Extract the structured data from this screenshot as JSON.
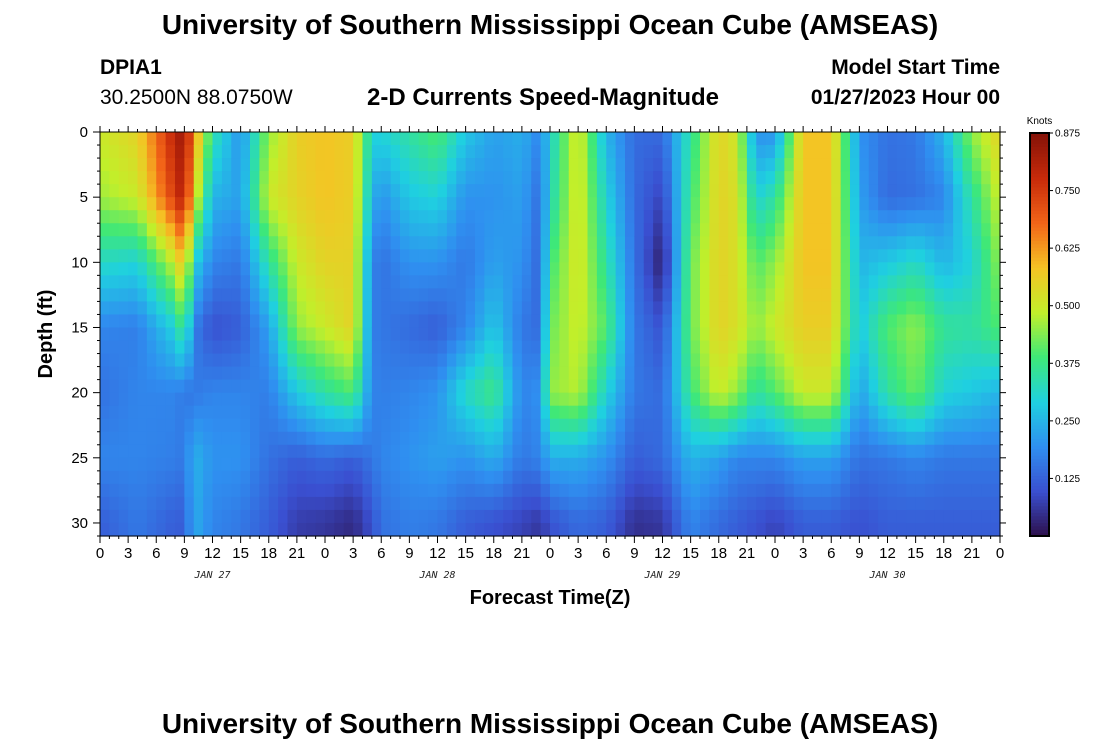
{
  "page": {
    "title": "University of Southern Mississippi Ocean Cube (AMSEAS)",
    "footer_title": "University of Southern Mississippi Ocean Cube (AMSEAS)",
    "station_id": "DPIA1",
    "coordinates": "30.2500N  88.0750W",
    "model_start_label": "Model Start Time",
    "model_start_value": "01/27/2023 Hour 00"
  },
  "colors": {
    "scale": [
      "#2c0f4a",
      "#3a4fd0",
      "#2f8ff0",
      "#1fd0e0",
      "#3ee878",
      "#c2ef2a",
      "#f5c324",
      "#f26418",
      "#c72a0a",
      "#851208"
    ]
  },
  "chart_data": {
    "type": "heatmap",
    "title": "2-D Currents Speed-Magnitude",
    "xlabel": "Forecast Time(Z)",
    "ylabel": "Depth (ft)",
    "colorbar_label": "Knots",
    "colorbar_range": [
      0,
      0.875
    ],
    "colorbar_ticks": [
      "0.125",
      "0.250",
      "0.375",
      "0.500",
      "0.625",
      "0.750",
      "0.875"
    ],
    "x_range_hours": [
      0,
      96
    ],
    "x_tick_labels": [
      "0",
      "3",
      "6",
      "9",
      "12",
      "15",
      "18",
      "21",
      "0",
      "3",
      "6",
      "9",
      "12",
      "15",
      "18",
      "21",
      "0",
      "3",
      "6",
      "9",
      "12",
      "15",
      "18",
      "21",
      "0",
      "3",
      "6",
      "9",
      "12",
      "15",
      "18",
      "21",
      "0"
    ],
    "date_labels": [
      "JAN 27",
      "JAN 28",
      "JAN 29",
      "JAN 30"
    ],
    "y_range": [
      31,
      0
    ],
    "y_ticks": [
      "0",
      "5",
      "10",
      "15",
      "20",
      "25",
      "30"
    ],
    "grid": false,
    "column_profiles_knots": {
      "depths_ft": [
        0,
        5,
        10,
        15,
        20,
        25,
        30
      ],
      "hours": [
        0,
        4,
        8,
        9,
        10,
        12,
        15,
        18,
        21,
        24,
        27,
        29,
        30,
        33,
        36,
        39,
        42,
        45,
        47,
        48,
        51,
        54,
        57,
        60,
        63,
        66,
        68,
        70,
        72,
        75,
        78,
        81,
        84,
        87,
        90,
        93,
        96
      ],
      "values": [
        [
          0.5,
          0.46,
          0.32,
          0.18,
          0.15,
          0.18,
          0.12
        ],
        [
          0.55,
          0.5,
          0.3,
          0.17,
          0.18,
          0.18,
          0.16
        ],
        [
          0.8,
          0.75,
          0.5,
          0.3,
          0.18,
          0.17,
          0.12
        ],
        [
          0.85,
          0.82,
          0.6,
          0.4,
          0.16,
          0.16,
          0.12
        ],
        [
          0.65,
          0.55,
          0.3,
          0.17,
          0.16,
          0.25,
          0.24
        ],
        [
          0.35,
          0.25,
          0.18,
          0.1,
          0.18,
          0.2,
          0.18
        ],
        [
          0.2,
          0.22,
          0.16,
          0.12,
          0.18,
          0.2,
          0.16
        ],
        [
          0.45,
          0.5,
          0.35,
          0.22,
          0.17,
          0.15,
          0.12
        ],
        [
          0.56,
          0.55,
          0.5,
          0.45,
          0.28,
          0.12,
          0.07
        ],
        [
          0.58,
          0.58,
          0.55,
          0.5,
          0.35,
          0.14,
          0.06
        ],
        [
          0.56,
          0.56,
          0.55,
          0.55,
          0.4,
          0.12,
          0.04
        ],
        [
          0.3,
          0.25,
          0.18,
          0.17,
          0.18,
          0.16,
          0.1
        ],
        [
          0.3,
          0.2,
          0.15,
          0.16,
          0.17,
          0.18,
          0.15
        ],
        [
          0.35,
          0.28,
          0.2,
          0.14,
          0.18,
          0.2,
          0.17
        ],
        [
          0.4,
          0.3,
          0.2,
          0.12,
          0.2,
          0.22,
          0.16
        ],
        [
          0.28,
          0.2,
          0.16,
          0.18,
          0.32,
          0.2,
          0.12
        ],
        [
          0.22,
          0.2,
          0.22,
          0.28,
          0.38,
          0.24,
          0.1
        ],
        [
          0.24,
          0.22,
          0.2,
          0.16,
          0.18,
          0.16,
          0.08
        ],
        [
          0.18,
          0.14,
          0.13,
          0.14,
          0.2,
          0.18,
          0.06
        ],
        [
          0.3,
          0.32,
          0.38,
          0.42,
          0.45,
          0.24,
          0.1
        ],
        [
          0.52,
          0.52,
          0.52,
          0.5,
          0.48,
          0.24,
          0.14
        ],
        [
          0.25,
          0.3,
          0.35,
          0.4,
          0.3,
          0.2,
          0.12
        ],
        [
          0.14,
          0.14,
          0.15,
          0.16,
          0.16,
          0.12,
          0.05
        ],
        [
          0.14,
          0.08,
          0.02,
          0.1,
          0.14,
          0.14,
          0.06
        ],
        [
          0.35,
          0.38,
          0.42,
          0.42,
          0.38,
          0.25,
          0.18
        ],
        [
          0.55,
          0.55,
          0.55,
          0.55,
          0.5,
          0.22,
          0.14
        ],
        [
          0.5,
          0.52,
          0.52,
          0.52,
          0.45,
          0.18,
          0.12
        ],
        [
          0.2,
          0.3,
          0.4,
          0.45,
          0.35,
          0.18,
          0.1
        ],
        [
          0.2,
          0.35,
          0.45,
          0.5,
          0.4,
          0.18,
          0.08
        ],
        [
          0.58,
          0.58,
          0.58,
          0.56,
          0.5,
          0.22,
          0.12
        ],
        [
          0.58,
          0.58,
          0.58,
          0.56,
          0.5,
          0.22,
          0.12
        ],
        [
          0.2,
          0.22,
          0.25,
          0.28,
          0.22,
          0.15,
          0.1
        ],
        [
          0.15,
          0.14,
          0.28,
          0.4,
          0.35,
          0.16,
          0.12
        ],
        [
          0.16,
          0.15,
          0.32,
          0.45,
          0.42,
          0.18,
          0.12
        ],
        [
          0.25,
          0.18,
          0.25,
          0.36,
          0.3,
          0.16,
          0.12
        ],
        [
          0.45,
          0.35,
          0.3,
          0.35,
          0.28,
          0.16,
          0.12
        ],
        [
          0.55,
          0.5,
          0.45,
          0.4,
          0.25,
          0.16,
          0.12
        ]
      ]
    }
  }
}
